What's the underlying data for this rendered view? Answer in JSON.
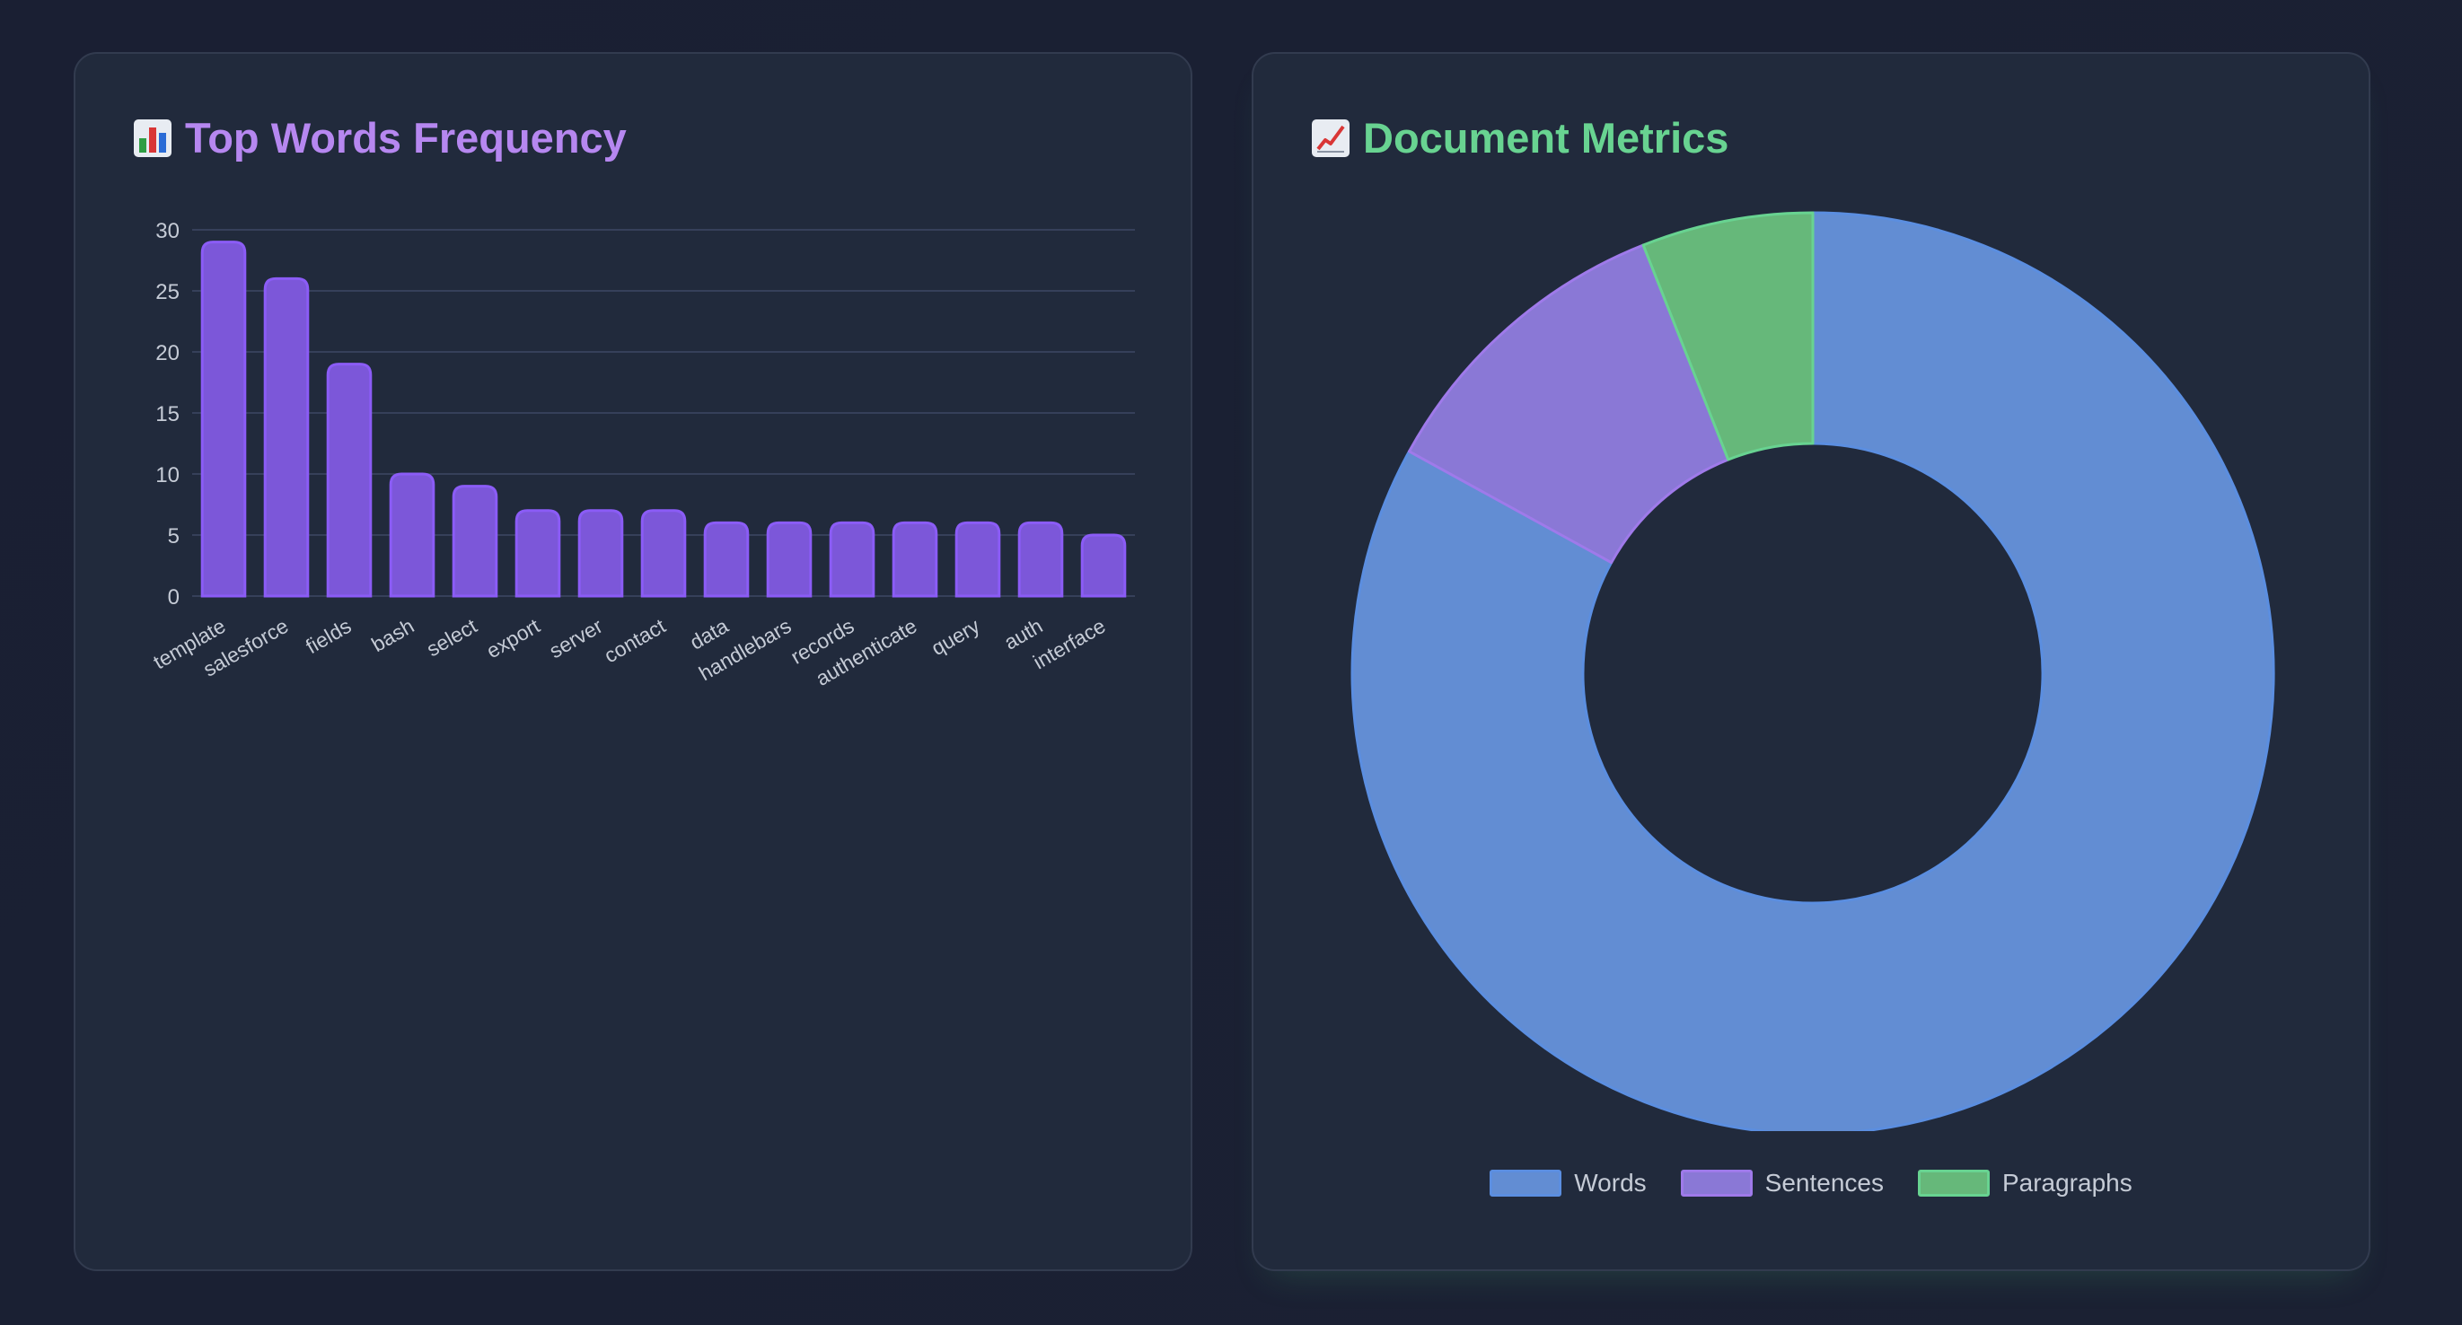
{
  "left_card": {
    "icon": "bar-chart-icon",
    "title": "Top Words Frequency"
  },
  "right_card": {
    "icon": "chart-increasing-icon",
    "title": "Document Metrics"
  },
  "colors": {
    "bar_fill": "#7c57d9",
    "bar_border": "#8b5cf6",
    "words": "#628dd3",
    "sentences": "#8a78d6",
    "paragraphs": "#66b87a"
  },
  "chart_data": [
    {
      "type": "bar",
      "title": "Top Words Frequency",
      "xlabel": "",
      "ylabel": "",
      "categories": [
        "template",
        "salesforce",
        "fields",
        "bash",
        "select",
        "export",
        "server",
        "contact",
        "data",
        "handlebars",
        "records",
        "authenticate",
        "query",
        "auth",
        "interface"
      ],
      "values": [
        29,
        26,
        19,
        10,
        9,
        7,
        7,
        7,
        6,
        6,
        6,
        6,
        6,
        6,
        5
      ],
      "ylim": [
        0,
        30
      ],
      "yticks": [
        "0",
        "5",
        "10",
        "15",
        "20",
        "25",
        "30"
      ],
      "grid": true
    },
    {
      "type": "pie",
      "title": "Document Metrics",
      "labels": [
        "Words",
        "Sentences",
        "Paragraphs"
      ],
      "values": [
        83,
        11,
        6
      ],
      "legend": "bottom"
    }
  ]
}
